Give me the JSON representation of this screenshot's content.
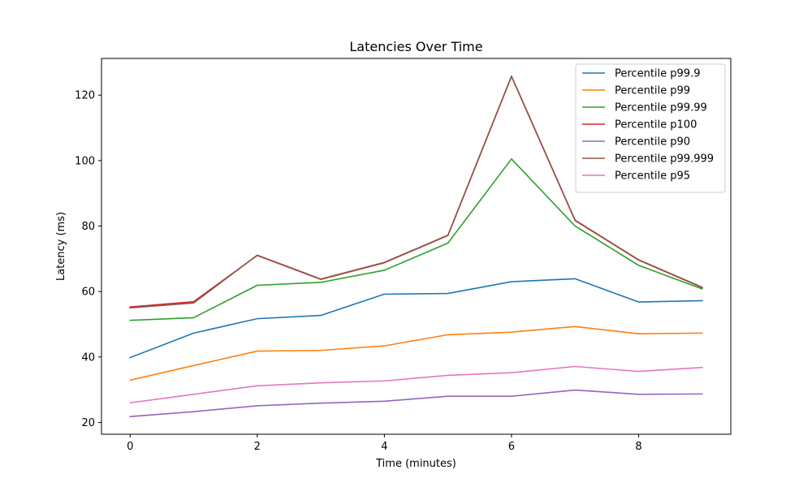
{
  "chart_data": {
    "type": "line",
    "title": "Latencies Over Time",
    "xlabel": "Time (minutes)",
    "ylabel": "Latency (ms)",
    "x": [
      0,
      1,
      2,
      3,
      4,
      5,
      6,
      7,
      8,
      9
    ],
    "xlim": [
      -0.45,
      9.45
    ],
    "ylim": [
      16.4,
      131.2
    ],
    "xticks": [
      0,
      2,
      4,
      6,
      8
    ],
    "yticks": [
      20,
      40,
      60,
      80,
      100,
      120
    ],
    "grid": false,
    "legend_position": "top-right",
    "series": [
      {
        "name": "Percentile p99.9",
        "color": "#1f77b4",
        "values": [
          39.8,
          47.3,
          51.7,
          52.7,
          59.2,
          59.4,
          63.0,
          63.9,
          56.8,
          57.2
        ]
      },
      {
        "name": "Percentile p99",
        "color": "#ff7f0e",
        "values": [
          32.9,
          37.4,
          41.8,
          42.0,
          43.4,
          46.8,
          47.6,
          49.3,
          47.1,
          47.3
        ]
      },
      {
        "name": "Percentile p99.99",
        "color": "#2ca02c",
        "values": [
          51.2,
          52.0,
          61.9,
          62.8,
          66.5,
          74.8,
          100.5,
          80.0,
          68.0,
          60.8
        ]
      },
      {
        "name": "Percentile p100",
        "color": "#d62728",
        "values": [
          55.3,
          56.9,
          71.0,
          63.7,
          68.8,
          77.1,
          125.7,
          81.7,
          69.6,
          61.2
        ]
      },
      {
        "name": "Percentile p90",
        "color": "#9467bd",
        "values": [
          21.8,
          23.3,
          25.1,
          25.9,
          26.5,
          28.0,
          28.0,
          29.9,
          28.6,
          28.7
        ]
      },
      {
        "name": "Percentile p99.999",
        "color": "#8c564b",
        "values": [
          55.0,
          56.5,
          71.1,
          63.8,
          68.9,
          77.2,
          125.8,
          81.8,
          69.7,
          61.3
        ]
      },
      {
        "name": "Percentile p95",
        "color": "#e377c2",
        "values": [
          26.0,
          28.6,
          31.2,
          32.1,
          32.7,
          34.4,
          35.2,
          37.1,
          35.6,
          36.8
        ]
      }
    ]
  }
}
